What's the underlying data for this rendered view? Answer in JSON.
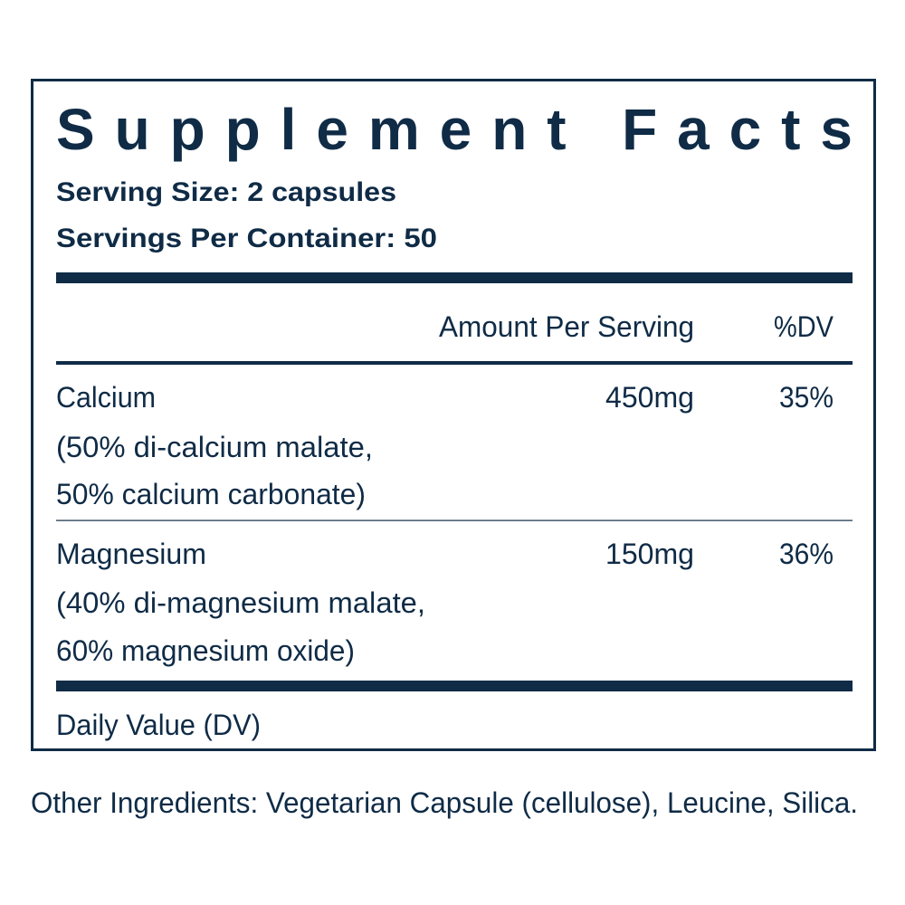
{
  "header": {
    "title": "Supplement Facts",
    "serving_size": "Serving Size: 2 capsules",
    "servings_per_container": "Servings Per Container: 50"
  },
  "table": {
    "columns": [
      "Amount Per Serving",
      "%DV"
    ],
    "rows": [
      {
        "name": "Calcium",
        "details": [
          "(50% di-calcium malate,",
          "50% calcium carbonate)"
        ],
        "amount": "450mg",
        "dv": "35%"
      },
      {
        "name": "Magnesium",
        "details": [
          "(40% di-magnesium malate,",
          "60% magnesium oxide)"
        ],
        "amount": "150mg",
        "dv": "36%"
      }
    ]
  },
  "footnote": "Daily Value (DV)",
  "other_ingredients": "Other Ingredients: Vegetarian Capsule (cellulose), Leucine, Silica."
}
